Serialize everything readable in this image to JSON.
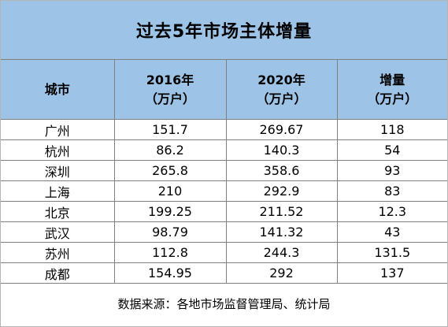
{
  "title": "过去5年市场主体增量",
  "headers": [
    {
      "line1": "城市",
      "line2": ""
    },
    {
      "line1": "2016年",
      "line2": "（万户）"
    },
    {
      "line1": "2020年",
      "line2": "（万户）"
    },
    {
      "line1": "增量",
      "line2": "（万户）"
    }
  ],
  "rows": [
    {
      "city": "广州",
      "y2016": "151.7",
      "y2020": "269.67",
      "inc": "118"
    },
    {
      "city": "杭州",
      "y2016": "86.2",
      "y2020": "140.3",
      "inc": "54"
    },
    {
      "city": "深圳",
      "y2016": "265.8",
      "y2020": "358.6",
      "inc": "93"
    },
    {
      "city": "上海",
      "y2016": "210",
      "y2020": "292.9",
      "inc": "83"
    },
    {
      "city": "北京",
      "y2016": "199.25",
      "y2020": "211.52",
      "inc": "12.3"
    },
    {
      "city": "武汉",
      "y2016": "98.79",
      "y2020": "141.32",
      "inc": "43"
    },
    {
      "city": "苏州",
      "y2016": "112.8",
      "y2020": "244.3",
      "inc": "131.5"
    },
    {
      "city": "成都",
      "y2016": "154.95",
      "y2020": "292",
      "inc": "137"
    }
  ],
  "source": "数据来源：各地市场监督管理局、统计局",
  "colors": {
    "header_bg": "#9dc3e6",
    "border": "#7f7f7f"
  }
}
